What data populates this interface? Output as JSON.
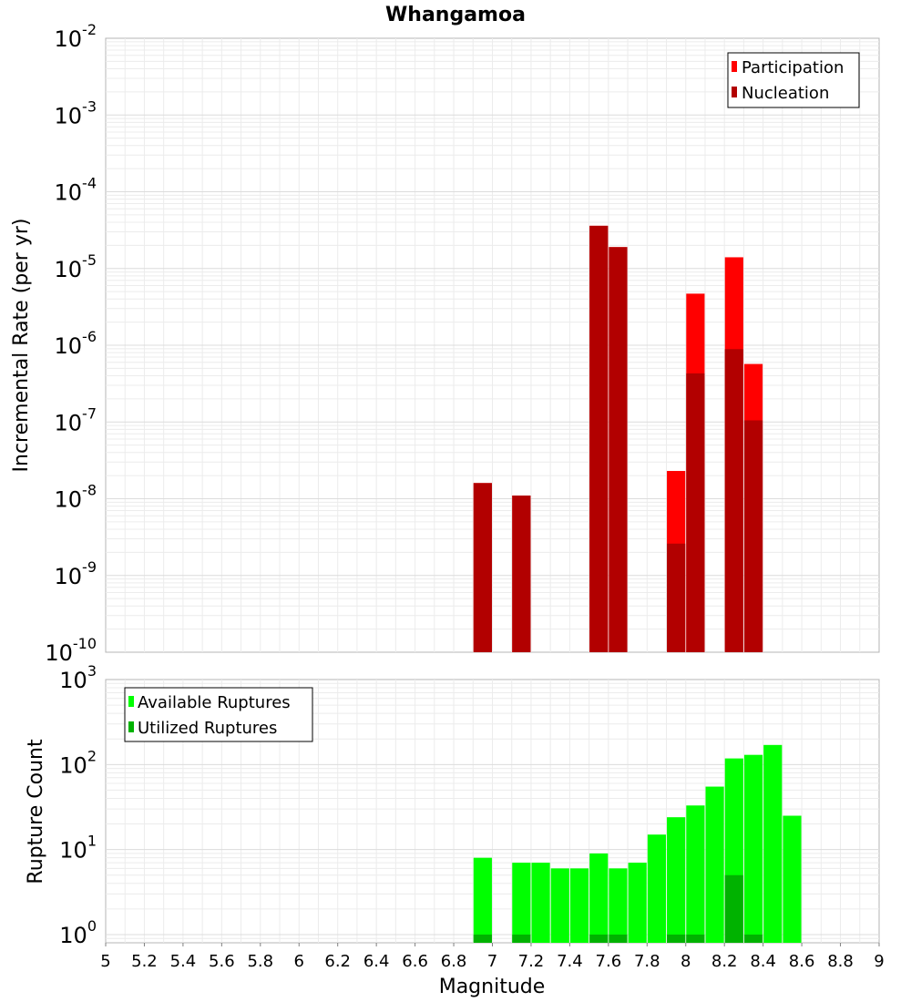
{
  "chart_data": [
    {
      "type": "bar",
      "title": "Whangamoa",
      "ylabel": "Incremental Rate (per yr)",
      "xlabel": "",
      "y_scale": "log",
      "xlim": [
        5,
        9
      ],
      "ylim": [
        1e-10,
        0.01
      ],
      "y_ticks": [
        {
          "base": "10",
          "exp": "-10"
        },
        {
          "base": "10",
          "exp": "-9"
        },
        {
          "base": "10",
          "exp": "-8"
        },
        {
          "base": "10",
          "exp": "-7"
        },
        {
          "base": "10",
          "exp": "-6"
        },
        {
          "base": "10",
          "exp": "-5"
        },
        {
          "base": "10",
          "exp": "-4"
        },
        {
          "base": "10",
          "exp": "-3"
        },
        {
          "base": "10",
          "exp": "-2"
        }
      ],
      "bar_width": 0.095,
      "grid": true,
      "legend": {
        "placement": "top-right",
        "entries": [
          "Participation",
          "Nucleation"
        ]
      },
      "colors": {
        "participation": "#ff0000",
        "nucleation": "#b20000"
      },
      "series": [
        {
          "name": "Participation",
          "x": [
            6.95,
            7.15,
            7.55,
            7.65,
            7.95,
            8.05,
            8.25,
            8.35
          ],
          "values": [
            1.6e-08,
            1.1e-08,
            3.6e-05,
            1.9e-05,
            2.3e-08,
            4.7e-06,
            1.4e-05,
            5.7e-07
          ]
        },
        {
          "name": "Nucleation",
          "x": [
            6.95,
            7.15,
            7.55,
            7.65,
            7.95,
            8.05,
            8.25,
            8.35
          ],
          "values": [
            1.6e-08,
            1.1e-08,
            3.6e-05,
            1.9e-05,
            2.6e-09,
            4.3e-07,
            8.9e-07,
            1.05e-07
          ]
        }
      ]
    },
    {
      "type": "bar",
      "title": "",
      "ylabel": "Rupture Count",
      "xlabel": "Magnitude",
      "y_scale": "log",
      "xlim": [
        5,
        9
      ],
      "ylim": [
        0.8,
        1000
      ],
      "y_ticks": [
        {
          "base": "10",
          "exp": "0"
        },
        {
          "base": "10",
          "exp": "1"
        },
        {
          "base": "10",
          "exp": "2"
        },
        {
          "base": "10",
          "exp": "3"
        }
      ],
      "x_ticks": [
        "5",
        "5.2",
        "5.4",
        "5.6",
        "5.8",
        "6",
        "6.2",
        "6.4",
        "6.6",
        "6.8",
        "7",
        "7.2",
        "7.4",
        "7.6",
        "7.8",
        "8",
        "8.2",
        "8.4",
        "8.6",
        "8.8",
        "9"
      ],
      "bar_width": 0.095,
      "grid": true,
      "legend": {
        "placement": "top-left",
        "entries": [
          "Available Ruptures",
          "Utilized Ruptures"
        ]
      },
      "colors": {
        "available": "#00ff00",
        "utilized": "#00b200"
      },
      "series": [
        {
          "name": "Available Ruptures",
          "x": [
            6.95,
            7.15,
            7.25,
            7.35,
            7.45,
            7.55,
            7.65,
            7.75,
            7.85,
            7.95,
            8.05,
            8.15,
            8.25,
            8.35,
            8.45,
            8.55
          ],
          "values": [
            8,
            7,
            7,
            6,
            6,
            9,
            6,
            7,
            15,
            24,
            33,
            55,
            118,
            130,
            170,
            25
          ]
        },
        {
          "name": "Utilized Ruptures",
          "x": [
            6.95,
            7.15,
            7.55,
            7.65,
            7.95,
            8.05,
            8.25,
            8.35
          ],
          "values": [
            1,
            1,
            1,
            1,
            1,
            1,
            5,
            1
          ]
        }
      ]
    }
  ]
}
